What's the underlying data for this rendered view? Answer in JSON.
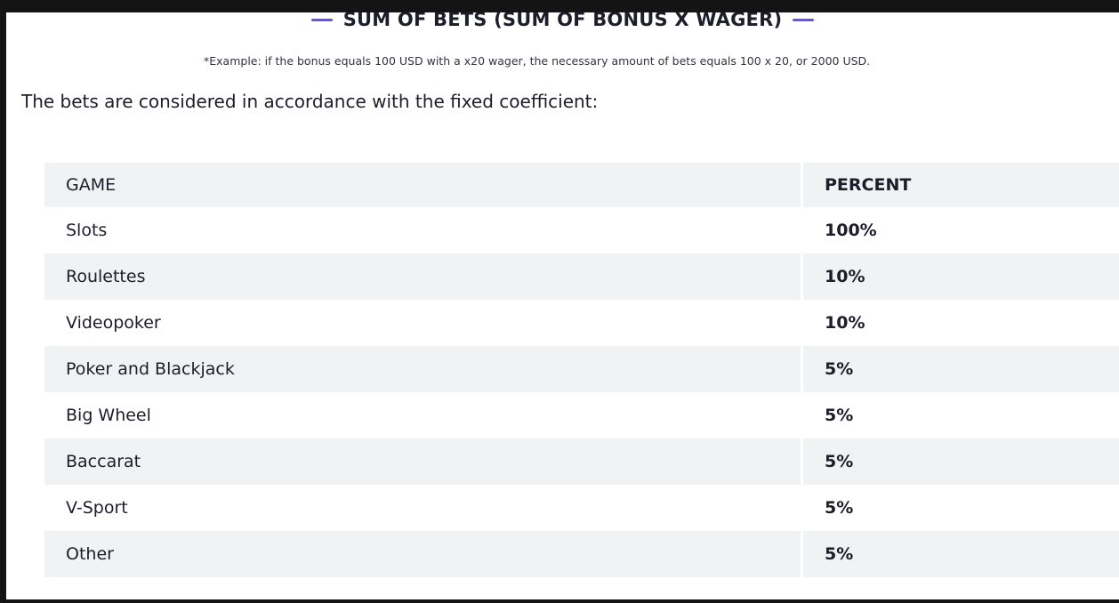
{
  "formula": {
    "text": "SUM OF BETS (SUM OF BONUS X WAGER)"
  },
  "example_note": "*Example: if the bonus equals 100 USD with a x20 wager, the necessary amount of bets equals 100 x 20, or 2000 USD.",
  "intro_text": "The bets are considered in accordance with the fixed coefficient:",
  "table": {
    "headers": {
      "game": "GAME",
      "percent": "PERCENT"
    },
    "rows": [
      {
        "game": "Slots",
        "percent": "100%"
      },
      {
        "game": "Roulettes",
        "percent": "10%"
      },
      {
        "game": "Videopoker",
        "percent": "10%"
      },
      {
        "game": "Poker and Blackjack",
        "percent": "5%"
      },
      {
        "game": "Big Wheel",
        "percent": "5%"
      },
      {
        "game": "Baccarat",
        "percent": "5%"
      },
      {
        "game": "V-Sport",
        "percent": "5%"
      },
      {
        "game": "Other",
        "percent": "5%"
      }
    ]
  },
  "colors": {
    "accent_dash": "#6b4ff0",
    "row_shade": "#f1f2f4",
    "text": "#1d1d2b",
    "outer_background": "#141414"
  }
}
